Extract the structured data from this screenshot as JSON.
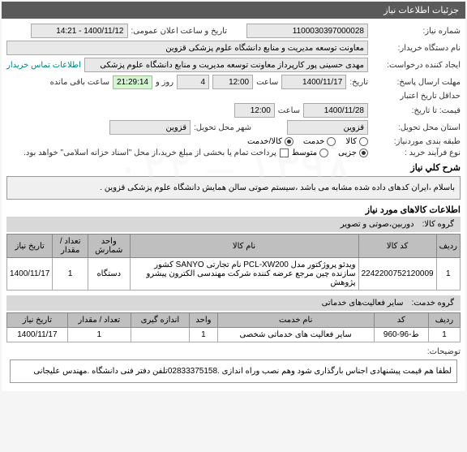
{
  "header": {
    "title": "جزئیات اطلاعات نیاز"
  },
  "fields": {
    "niaz_no_label": "شماره نیاز:",
    "niaz_no": "1100030397000028",
    "announce_label": "تاریخ و ساعت اعلان عمومی:",
    "announce_value": "1400/11/12 - 14:21",
    "buyer_label": "نام دستگاه خریدار:",
    "buyer_value": "معاونت توسعه مدیریت و منابع دانشگاه علوم پزشکی قزوین",
    "requester_label": "ایجاد کننده درخواست:",
    "requester_value": "مهدی حسینی پور کارپرداز معاونت توسعه مدیریت و منابع دانشگاه علوم پزشکی",
    "contact_link": "اطلاعات تماس خریدار",
    "deadline_label": "مهلت ارسال پاسخ:",
    "deadline_date_label": "تاریخ:",
    "deadline_date": "1400/11/17",
    "deadline_time_label": "ساعت",
    "deadline_time": "12:00",
    "days_label": "روز و",
    "days_value": "4",
    "remain_time": "21:29:14",
    "remain_label": "ساعت باقی مانده",
    "price_valid_label": "حداقل تاریخ اعتبار",
    "price_valid_label2": "قیمت: تا تاریخ:",
    "price_valid_date": "1400/11/28",
    "price_valid_time_label": "ساعت",
    "price_valid_time": "12:00",
    "province_label": "استان محل تحویل:",
    "province_value": "قزوین",
    "city_label": "شهر محل تحویل:",
    "city_value": "قزوین",
    "need_type_label": "طبقه بندی موردنیاز:",
    "need_type_opts": [
      "کالا/خدمت",
      "خدمت",
      "کالا"
    ],
    "need_type_selected": 0,
    "buy_process_label": "نوع فرآیند خرید :",
    "buy_process_opts": [
      "جزیی",
      "متوسط"
    ],
    "buy_process_selected": 0,
    "payment_note": "پرداخت تمام یا بخشی از مبلغ خرید،از محل \"اسناد خزانه اسلامی\" خواهد بود.",
    "desc_label": "شرح کلي نياز",
    "desc_text": "باسلام ،ایران کدهای داده شده مشابه می باشد ،سیستم صوتی سالن همایش دانشگاه علوم پزشکی قزوین .",
    "goods_section": "اطلاعات کالاهای مورد نیاز",
    "goods_group_label": "گروه کالا:",
    "goods_group_value": "دوربین،صوتی و تصویر",
    "table1": {
      "headers": [
        "ردیف",
        "کد کالا",
        "نام کالا",
        "واحد شمارش",
        "تعداد / مقدار",
        "تاریخ نیاز"
      ],
      "rows": [
        [
          "1",
          "2242200752120009",
          "ویدئو پروژکتور مدل PCL-XW200 نام تجارتی SANYO کشور سازنده چین مرجع عرضه کننده شرکت مهندسی الکترون پیشرو پژوهش",
          "دستگاه",
          "1",
          "1400/11/17"
        ]
      ]
    },
    "service_group_label": "گروه خدمت:",
    "service_group_value": "سایر فعالیت‌های خدماتی",
    "table2": {
      "headers": [
        "ردیف",
        "کد",
        "نام خدمت",
        "واحد",
        "اندازه گیری",
        "تعداد / مقدار",
        "تاریخ نیاز"
      ],
      "rows": [
        [
          "1",
          "ط-96-960",
          "سایر فعالیت های خدماتی شخصی",
          "1",
          "",
          "1",
          "1400/11/17"
        ]
      ]
    },
    "explain_label": "توضیحات:",
    "explain_text": "لطفا هم قیمت پیشنهادی اجناس بارگذاری شود وهم نصب وراه اندازی .02833375158تلفن دفتر فنی دانشگاه .مهندس علیجانی"
  }
}
